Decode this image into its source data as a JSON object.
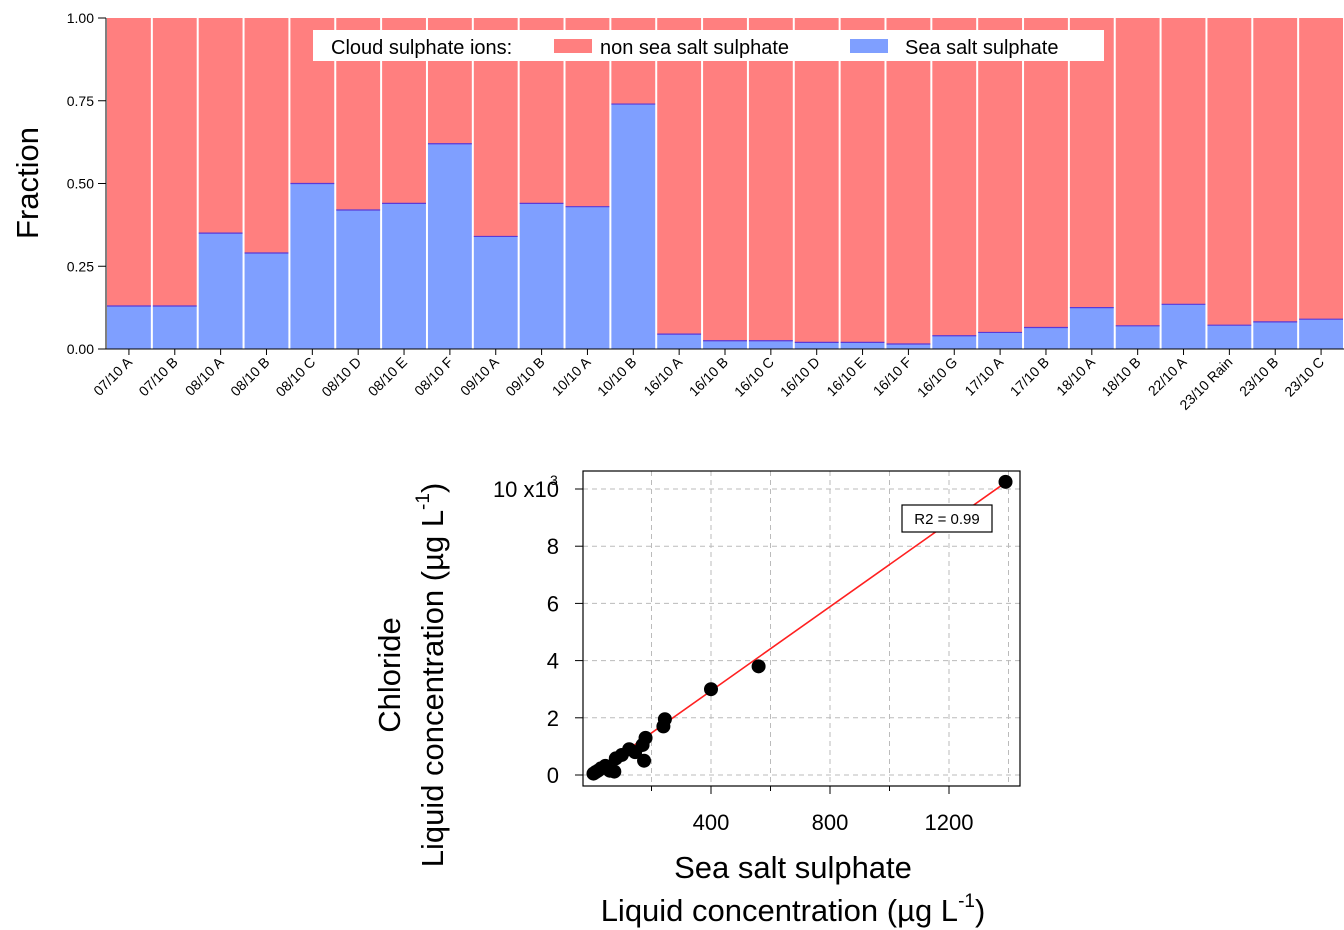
{
  "chart_data": [
    {
      "type": "bar",
      "stacked": true,
      "ylabel": "Fraction",
      "ylim": [
        0,
        1
      ],
      "yticks": [
        0.0,
        0.25,
        0.5,
        0.75,
        1.0
      ],
      "ytick_labels": [
        "0.00",
        "0.25",
        "0.50",
        "0.75",
        "1.00"
      ],
      "legend": {
        "placement": "top-center",
        "title": "Cloud sulphate ions:",
        "entries": [
          "non sea salt sulphate",
          "Sea salt sulphate"
        ]
      },
      "categories": [
        "07/10 A",
        "07/10 B",
        "08/10 A",
        "08/10 B",
        "08/10 C",
        "08/10 D",
        "08/10 E",
        "08/10 F",
        "09/10 A",
        "09/10 B",
        "10/10 A",
        "10/10 B",
        "16/10 A",
        "16/10 B",
        "16/10 C",
        "16/10 D",
        "16/10 E",
        "16/10 F",
        "16/10 G",
        "17/10 A",
        "17/10 B",
        "18/10 A",
        "18/10 B",
        "22/10 A",
        "23/10 Rain",
        "23/10 B",
        "23/10 C"
      ],
      "series": [
        {
          "name": "Sea salt sulphate",
          "color": "#7f9fff",
          "values": [
            0.13,
            0.13,
            0.35,
            0.29,
            0.5,
            0.42,
            0.44,
            0.62,
            0.34,
            0.44,
            0.43,
            0.74,
            0.045,
            0.025,
            0.025,
            0.02,
            0.02,
            0.015,
            0.04,
            0.05,
            0.065,
            0.125,
            0.07,
            0.135,
            0.072,
            0.082,
            0.09
          ]
        },
        {
          "name": "non sea salt sulphate",
          "color": "#ff7f7f",
          "values": [
            0.87,
            0.87,
            0.65,
            0.71,
            0.5,
            0.58,
            0.56,
            0.38,
            0.66,
            0.56,
            0.57,
            0.26,
            0.955,
            0.975,
            0.975,
            0.98,
            0.98,
            0.985,
            0.96,
            0.95,
            0.935,
            0.875,
            0.93,
            0.865,
            0.928,
            0.918,
            0.91
          ]
        }
      ]
    },
    {
      "type": "scatter",
      "xlabel": [
        "Sea salt sulphate",
        "Liquid concentration (µg L",
        "-1",
        ")"
      ],
      "ylabel": [
        "Chloride",
        "Liquid concentration (µg L",
        "-1",
        ")"
      ],
      "xlim": [
        0,
        1400
      ],
      "ylim": [
        0,
        10300
      ],
      "xticks": [
        400,
        800,
        1200
      ],
      "xtick_labels": [
        "400",
        "800",
        "1200"
      ],
      "yticks": [
        0,
        2000,
        4000,
        6000,
        8000,
        10000
      ],
      "ytick_labels": [
        "0",
        "2",
        "4",
        "6",
        "8",
        "10 x10"
      ],
      "y_exponent": "3",
      "grid": true,
      "annotation": "R2 = 0.99",
      "marker_color": "#000000",
      "fit_color": "#ff2020",
      "fit_line": {
        "x": [
          0,
          1400
        ],
        "y": [
          0,
          10300
        ]
      },
      "points": [
        {
          "x": 5,
          "y": 50
        },
        {
          "x": 12,
          "y": 100
        },
        {
          "x": 20,
          "y": 150
        },
        {
          "x": 30,
          "y": 230
        },
        {
          "x": 45,
          "y": 320
        },
        {
          "x": 60,
          "y": 150
        },
        {
          "x": 75,
          "y": 120
        },
        {
          "x": 80,
          "y": 580
        },
        {
          "x": 100,
          "y": 700
        },
        {
          "x": 125,
          "y": 900
        },
        {
          "x": 145,
          "y": 800
        },
        {
          "x": 170,
          "y": 1050
        },
        {
          "x": 175,
          "y": 500
        },
        {
          "x": 180,
          "y": 1300
        },
        {
          "x": 240,
          "y": 1700
        },
        {
          "x": 245,
          "y": 1950
        },
        {
          "x": 400,
          "y": 3000
        },
        {
          "x": 560,
          "y": 3800
        },
        {
          "x": 1390,
          "y": 10250
        }
      ]
    }
  ]
}
